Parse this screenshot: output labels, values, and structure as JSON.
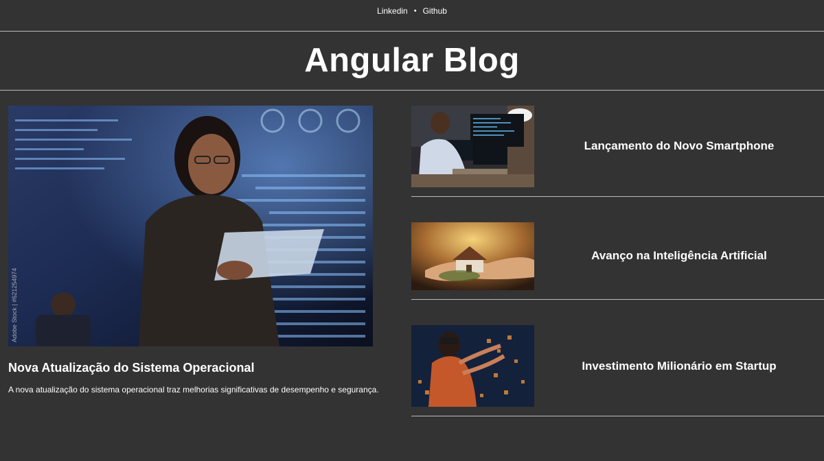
{
  "nav": {
    "links": [
      {
        "label": "Linkedin"
      },
      {
        "label": "Github"
      }
    ],
    "separator": "•"
  },
  "header": {
    "title": "Angular Blog"
  },
  "featured": {
    "image_icon": "woman-with-tablet-photo",
    "watermark": "Adobe Stock | #621254974",
    "title": "Nova Atualização do Sistema Operacional",
    "description": "A nova atualização do sistema operacional traz melhorias significativas de desempenho e segurança."
  },
  "side_posts": [
    {
      "title": "Lançamento do Novo Smartphone",
      "image_icon": "man-at-computer-photo"
    },
    {
      "title": "Avanço na Inteligência Artificial",
      "image_icon": "house-in-hands-photo"
    },
    {
      "title": "Investimento Milionário em Startup",
      "image_icon": "woman-vr-headset-photo"
    }
  ],
  "colors": {
    "background": "#333333",
    "text": "#ffffff",
    "divider": "#bdbdbd"
  }
}
